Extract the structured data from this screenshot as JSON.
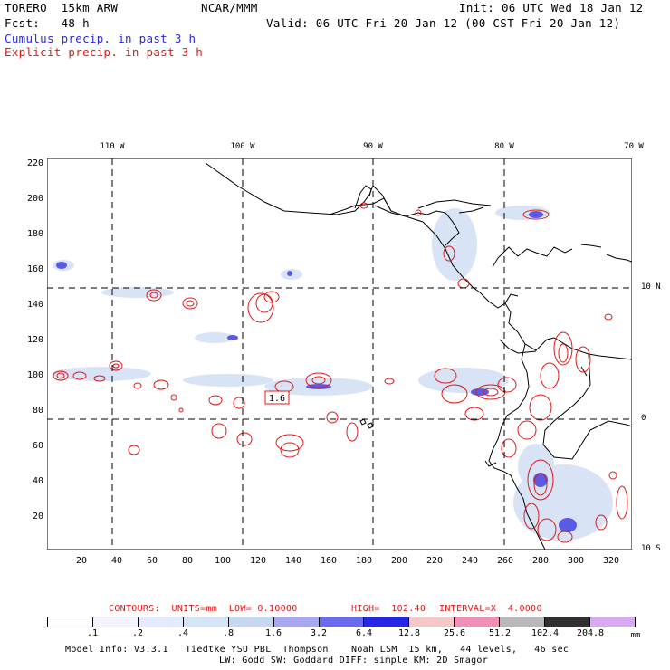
{
  "header": {
    "model": "TORERO  15km ARW",
    "org": "NCAR/MMM",
    "init": "Init: 06 UTC Wed 18 Jan 12",
    "fcst": "Fcst:   48 h",
    "valid": "Valid: 06 UTC Fri 20 Jan 12 (00 CST Fri 20 Jan 12)",
    "legend_cumulus": "Cumulus precip. in past 3 h",
    "legend_explicit": "Explicit precip. in past 3 h"
  },
  "colors": {
    "cumulus": "#2b2bd6",
    "explicit": "#e01818"
  },
  "axes": {
    "y_ticks": [
      "220",
      "200",
      "180",
      "160",
      "140",
      "120",
      "100",
      "80",
      "60",
      "40",
      "20"
    ],
    "x_ticks": [
      "20",
      "40",
      "60",
      "80",
      "100",
      "120",
      "140",
      "160",
      "180",
      "200",
      "220",
      "240",
      "260",
      "280",
      "300",
      "320"
    ],
    "lon_labels": [
      "110 W",
      "100 W",
      "90 W",
      "80 W",
      "70 W"
    ],
    "lat_labels": [
      "10 N",
      "0",
      "10 S"
    ]
  },
  "map": {
    "label_box": "1.6"
  },
  "contour_info": {
    "contours": "CONTOURS:  UNITS=mm  LOW= 0.10000",
    "high": "HIGH=  102.40",
    "interval": "INTERVAL=X  4.0000"
  },
  "colorbar": {
    "labels": [
      ".1",
      ".2",
      ".4",
      ".8",
      "1.6",
      "3.2",
      "6.4",
      "12.8",
      "25.6",
      "51.2",
      "102.4",
      "204.8"
    ],
    "unit": "mm",
    "colors": [
      "#ffffff",
      "#f4f4ff",
      "#e4eaff",
      "#d2e6f8",
      "#c4d8f2",
      "#a8a8f0",
      "#6a6aec",
      "#2626e6",
      "#f4c8c8",
      "#f090b8",
      "#b8b8b8",
      "#303030",
      "#d8a8f0"
    ]
  },
  "footer": {
    "line1": "Model Info: V3.3.1   Tiedtke YSU PBL  Thompson    Noah LSM  15 km,   44 levels,   46 sec",
    "line2": "LW: Godd SW: Goddard DIFF: simple KM: 2D Smagor"
  }
}
